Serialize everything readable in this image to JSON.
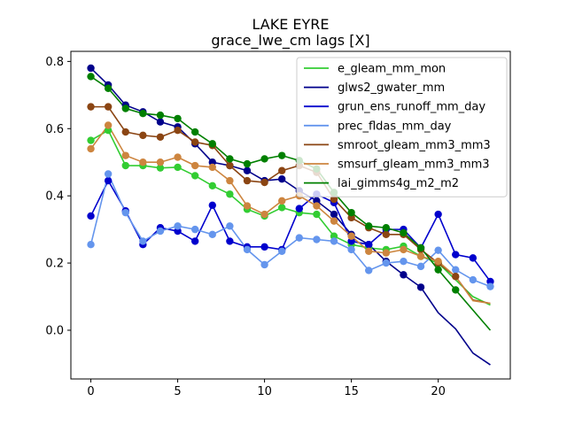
{
  "chart_data": {
    "type": "line",
    "title": "LAKE EYRE",
    "subtitle": "grace_lwe_cm lags [X]",
    "xlabel": "",
    "ylabel": "",
    "xlim": [
      -1.15,
      24.15
    ],
    "ylim": [
      -0.145,
      0.83
    ],
    "xticks": [
      0,
      5,
      10,
      15,
      20
    ],
    "yticks": [
      0.0,
      0.2,
      0.4,
      0.6,
      0.8
    ],
    "ytick_labels": [
      "0.0",
      "0.2",
      "0.4",
      "0.6",
      "0.8"
    ],
    "grid": false,
    "legend_position": "top-right",
    "series": [
      {
        "name": "e_gleam_mm_mon",
        "color": "#32cd32",
        "x": [
          0,
          1,
          2,
          3,
          4,
          5,
          6,
          7,
          8,
          9,
          10,
          11,
          12,
          13,
          14,
          15,
          16,
          17,
          18,
          19,
          20,
          21,
          22,
          23
        ],
        "values": [
          0.565,
          0.595,
          0.49,
          0.49,
          0.483,
          0.485,
          0.46,
          0.43,
          0.405,
          0.36,
          0.34,
          0.365,
          0.35,
          0.345,
          0.28,
          0.255,
          0.245,
          0.24,
          0.25,
          0.22,
          0.2,
          0.15,
          0.1,
          0.075
        ],
        "markers_to_index": 20
      },
      {
        "name": "glws2_gwater_mm",
        "color": "#00008b",
        "x": [
          0,
          1,
          2,
          3,
          4,
          5,
          6,
          7,
          8,
          9,
          10,
          11,
          12,
          13,
          14,
          15,
          16,
          17,
          18,
          19,
          20,
          21,
          22,
          23
        ],
        "values": [
          0.78,
          0.73,
          0.67,
          0.65,
          0.62,
          0.605,
          0.555,
          0.5,
          0.49,
          0.475,
          0.445,
          0.45,
          0.415,
          0.385,
          0.345,
          0.285,
          0.255,
          0.205,
          0.165,
          0.128,
          0.052,
          0.004,
          -0.068,
          -0.103
        ],
        "markers_to_index": 19
      },
      {
        "name": "grun_ens_runoff_mm_day",
        "color": "#0000cd",
        "x": [
          0,
          1,
          2,
          3,
          4,
          5,
          6,
          7,
          8,
          9,
          10,
          11,
          12,
          13,
          14,
          15,
          16,
          17,
          18,
          19,
          20,
          21,
          22,
          23
        ],
        "values": [
          0.34,
          0.445,
          0.355,
          0.255,
          0.305,
          0.295,
          0.265,
          0.372,
          0.265,
          0.248,
          0.248,
          0.24,
          0.362,
          0.405,
          0.38,
          0.265,
          0.255,
          0.3,
          0.3,
          0.245,
          0.345,
          0.225,
          0.215,
          0.145
        ],
        "markers_to_index": 23
      },
      {
        "name": "prec_fldas_mm_day",
        "color": "#6495ed",
        "x": [
          0,
          1,
          2,
          3,
          4,
          5,
          6,
          7,
          8,
          9,
          10,
          11,
          12,
          13,
          14,
          15,
          16,
          17,
          18,
          19,
          20,
          21,
          22,
          23
        ],
        "values": [
          0.255,
          0.465,
          0.35,
          0.265,
          0.295,
          0.31,
          0.3,
          0.285,
          0.31,
          0.24,
          0.195,
          0.235,
          0.275,
          0.27,
          0.265,
          0.24,
          0.178,
          0.2,
          0.205,
          0.19,
          0.238,
          0.18,
          0.15,
          0.13
        ],
        "markers_to_index": 23
      },
      {
        "name": "smroot_gleam_mm3_mm3",
        "color": "#8b4513",
        "x": [
          0,
          1,
          2,
          3,
          4,
          5,
          6,
          7,
          8,
          9,
          10,
          11,
          12,
          13,
          14,
          15,
          16,
          17,
          18,
          19,
          20,
          21,
          22,
          23
        ],
        "values": [
          0.665,
          0.665,
          0.59,
          0.58,
          0.575,
          0.595,
          0.56,
          0.55,
          0.49,
          0.445,
          0.44,
          0.475,
          0.49,
          0.47,
          0.39,
          0.335,
          0.305,
          0.285,
          0.285,
          0.24,
          0.2,
          0.16,
          0.09,
          0.08
        ],
        "markers_to_index": 21
      },
      {
        "name": "smsurf_gleam_mm3_mm3",
        "color": "#cd853f",
        "x": [
          0,
          1,
          2,
          3,
          4,
          5,
          6,
          7,
          8,
          9,
          10,
          11,
          12,
          13,
          14,
          15,
          16,
          17,
          18,
          19,
          20,
          21,
          22,
          23
        ],
        "values": [
          0.54,
          0.61,
          0.52,
          0.5,
          0.5,
          0.515,
          0.49,
          0.485,
          0.445,
          0.37,
          0.345,
          0.385,
          0.4,
          0.37,
          0.325,
          0.28,
          0.235,
          0.23,
          0.24,
          0.22,
          0.205,
          0.16,
          0.088,
          0.08
        ],
        "markers_to_index": 20
      },
      {
        "name": "lai_gimms4g_m2_m2",
        "color": "#008000",
        "x": [
          0,
          1,
          2,
          3,
          4,
          5,
          6,
          7,
          8,
          9,
          10,
          11,
          12,
          13,
          14,
          15,
          16,
          17,
          18,
          19,
          20,
          21,
          22,
          23
        ],
        "values": [
          0.755,
          0.72,
          0.66,
          0.645,
          0.64,
          0.63,
          0.59,
          0.555,
          0.51,
          0.495,
          0.51,
          0.52,
          0.505,
          0.48,
          0.41,
          0.35,
          0.31,
          0.305,
          0.29,
          0.245,
          0.18,
          0.12,
          0.06,
          0.0
        ],
        "markers_to_index": 21
      }
    ]
  }
}
